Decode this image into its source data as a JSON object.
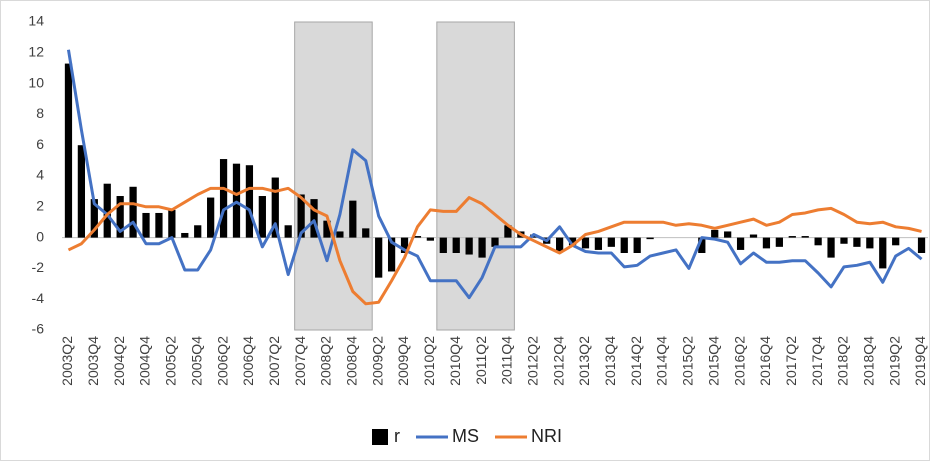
{
  "chart_data": {
    "type": "bar",
    "categories": [
      "2003Q2",
      null,
      "2003Q4",
      null,
      "2004Q2",
      null,
      "2004Q4",
      null,
      "2005Q2",
      null,
      "2005Q4",
      null,
      "2006Q2",
      null,
      "2006Q4",
      null,
      "2007Q2",
      null,
      "2007Q4",
      null,
      "2008Q2",
      null,
      "2008Q4",
      null,
      "2009Q2",
      null,
      "2009Q4",
      null,
      "2010Q2",
      null,
      "2010Q4",
      null,
      "2011Q2",
      null,
      "2011Q4",
      null,
      "2012Q2",
      null,
      "2012Q4",
      null,
      "2013Q2",
      null,
      "2013Q4",
      null,
      "2014Q2",
      null,
      "2014Q4",
      null,
      "2015Q2",
      null,
      "2015Q4",
      null,
      "2016Q2",
      null,
      "2016Q4",
      null,
      "2017Q2",
      null,
      "2017Q4",
      null,
      "2018Q2",
      null,
      "2018Q4",
      null,
      "2019Q2",
      null,
      "2019Q4"
    ],
    "series": [
      {
        "name": "r",
        "type": "bar",
        "color": "#000000",
        "values": [
          11.3,
          6,
          2.5,
          3.5,
          2.7,
          3.3,
          1.6,
          1.6,
          1.8,
          0.3,
          0.8,
          2.6,
          5.1,
          4.8,
          4.7,
          2.7,
          3.9,
          0.8,
          2.8,
          2.5,
          1.1,
          0.4,
          2.4,
          0.6,
          -2.6,
          -2.2,
          -1.0,
          0.1,
          -0.2,
          -1.0,
          -1.0,
          -1.1,
          -1.3,
          -0.6,
          0.8,
          0.4,
          0.2,
          -0.4,
          -0.9,
          -0.5,
          -0.7,
          -0.8,
          -0.6,
          -1.0,
          -1.0,
          -0.1,
          0,
          0,
          0,
          -1.0,
          0.5,
          0.4,
          -0.8,
          0.2,
          -0.7,
          -0.6,
          0.1,
          0.1,
          -0.5,
          -1.3,
          -0.4,
          -0.6,
          -0.7,
          -2.0,
          -0.5,
          0,
          -1.0
        ]
      },
      {
        "name": "MS",
        "type": "line",
        "color": "#4472c4",
        "values": [
          12.2,
          7,
          2.2,
          1.5,
          0.4,
          1.0,
          -0.4,
          -0.4,
          0,
          -2.1,
          -2.1,
          -0.8,
          1.8,
          2.3,
          1.8,
          -0.6,
          0.9,
          -2.4,
          0.3,
          1.1,
          -1.5,
          1.5,
          5.7,
          5.0,
          1.4,
          -0.3,
          -0.8,
          -1.2,
          -2.8,
          -2.8,
          -2.8,
          -3.9,
          -2.6,
          -0.6,
          -0.6,
          -0.6,
          0.2,
          -0.2,
          0.7,
          -0.5,
          -0.9,
          -1.0,
          -1.0,
          -1.9,
          -1.8,
          -1.2,
          -1.0,
          -0.8,
          -2.0,
          0,
          -0.1,
          -0.3,
          -1.7,
          -1.0,
          -1.6,
          -1.6,
          -1.5,
          -1.5,
          -2.3,
          -3.2,
          -1.9,
          -1.8,
          -1.6,
          -2.9,
          -1.2,
          -0.7,
          -1.4
        ]
      },
      {
        "name": "NRI",
        "type": "line",
        "color": "#ed7d31",
        "values": [
          -0.8,
          -0.4,
          0.5,
          1.5,
          2.2,
          2.2,
          2.0,
          2.0,
          1.8,
          2.3,
          2.8,
          3.2,
          3.2,
          2.8,
          3.2,
          3.2,
          3.0,
          3.2,
          2.6,
          1.8,
          1.4,
          -1.5,
          -3.5,
          -4.3,
          -4.2,
          -2.8,
          -1.3,
          0.7,
          1.8,
          1.7,
          1.7,
          2.6,
          2.2,
          1.5,
          0.8,
          0.2,
          -0.2,
          -0.6,
          -1.0,
          -0.5,
          0.2,
          0.4,
          0.7,
          1.0,
          1.0,
          1.0,
          1.0,
          0.8,
          0.9,
          0.8,
          0.6,
          0.8,
          1.0,
          1.2,
          0.8,
          1.0,
          1.5,
          1.6,
          1.8,
          1.9,
          1.5,
          1.0,
          0.9,
          1.0,
          0.7,
          0.6,
          0.4
        ]
      }
    ],
    "shaded_periods": [
      {
        "from": 18,
        "to": 23
      },
      {
        "from": 29,
        "to": 34
      }
    ],
    "shade_color": "#d9d9d9",
    "ylim": [
      -6,
      14
    ],
    "yticks": [
      -6,
      -4,
      -2,
      0,
      2,
      4,
      6,
      8,
      10,
      12,
      14
    ],
    "grid": false,
    "legend": "bottom"
  }
}
